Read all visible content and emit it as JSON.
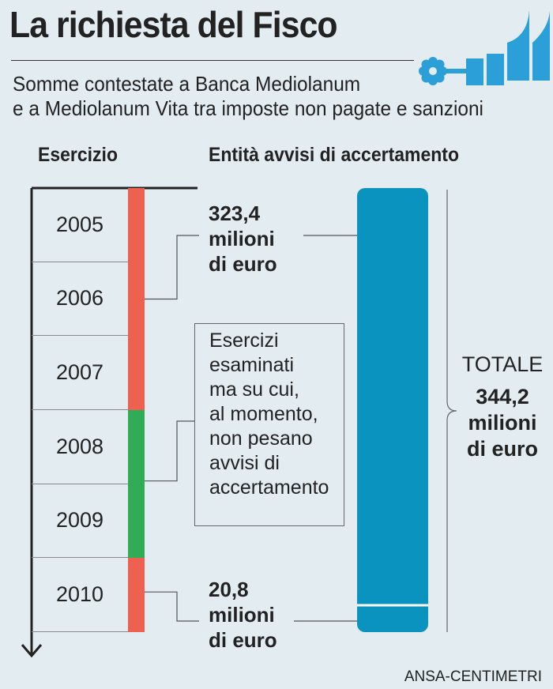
{
  "header": {
    "title": "La richiesta del Fisco",
    "subtitle_line1": "Somme contestate a Banca Mediolanum",
    "subtitle_line2": "e a Mediolanum Vita tra imposte non pagate e sanzioni"
  },
  "colors": {
    "background": "#e3ecf1",
    "bar": "#0b93bf",
    "contested": "#ee6150",
    "no_notice": "#2fac55",
    "brand": "#2b9fd8"
  },
  "chart_data": {
    "type": "bar",
    "column_headers": {
      "years": "Esercizio",
      "amounts": "Entità avvisi di accertamento"
    },
    "categories": [
      "2005",
      "2006",
      "2007",
      "2008",
      "2009",
      "2010"
    ],
    "year_status": [
      "contested",
      "contested",
      "contested",
      "no_notice",
      "no_notice",
      "contested"
    ],
    "segments": [
      {
        "years": [
          "2005",
          "2006",
          "2007"
        ],
        "value": 323.4,
        "label": [
          "323,4",
          "milioni",
          "di euro"
        ]
      },
      {
        "years": [
          "2010"
        ],
        "value": 20.8,
        "label": [
          "20,8",
          "milioni",
          "di euro"
        ]
      }
    ],
    "note": {
      "years": [
        "2008",
        "2009"
      ],
      "text": "Esercizi\nesaminati\nma su cui,\nal momento,\nnon pesano\navvisi di\naccertamento"
    },
    "total": {
      "label": "TOTALE",
      "value": 344.2,
      "value_text": "344,2",
      "unit_line1": "milioni",
      "unit_line2": "di euro"
    }
  },
  "source": "ANSA-CENTIMETRI"
}
